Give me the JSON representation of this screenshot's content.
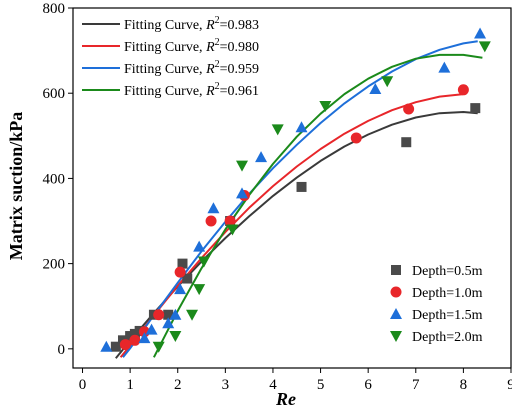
{
  "chart_data": {
    "type": "scatter",
    "title": "",
    "xlabel": "Re",
    "ylabel": "Matrix suction/kPa",
    "xlim": [
      -0.2,
      9
    ],
    "ylim": [
      -45,
      800
    ],
    "xticks": [
      0,
      1,
      2,
      3,
      4,
      5,
      6,
      7,
      8,
      9
    ],
    "yticks": [
      0,
      200,
      400,
      600,
      800
    ],
    "grid": false,
    "legend_curves_position": "top-left",
    "legend_points_position": "bottom-right",
    "curves": [
      {
        "name": "Fitting Curve, ",
        "r2_label": "R",
        "r2_sup": "2",
        "r2_value": "=0.983",
        "color": "#3a3a3a",
        "x": [
          0.7,
          1.0,
          1.5,
          2.0,
          2.5,
          3.0,
          3.5,
          4.0,
          4.5,
          5.0,
          5.5,
          6.0,
          6.5,
          7.0,
          7.5,
          8.0,
          8.3
        ],
        "y": [
          -22,
          19,
          84,
          146,
          205,
          260,
          311,
          359,
          402,
          441,
          475,
          503,
          526,
          543,
          553,
          556,
          553
        ]
      },
      {
        "name": "Fitting Curve, ",
        "r2_label": "R",
        "r2_sup": "2",
        "r2_value": "=0.980",
        "color": "#e8262a",
        "x": [
          0.8,
          1.0,
          1.5,
          2.0,
          2.5,
          3.0,
          3.5,
          4.0,
          4.5,
          5.0,
          5.5,
          6.0,
          6.5,
          7.0,
          7.5,
          8.0
        ],
        "y": [
          -20,
          7,
          79,
          148,
          213,
          274,
          331,
          382,
          428,
          469,
          505,
          535,
          560,
          579,
          592,
          598
        ]
      },
      {
        "name": "Fitting Curve, ",
        "r2_label": "R",
        "r2_sup": "2",
        "r2_value": "=0.959",
        "color": "#1e6fd9",
        "x": [
          0.85,
          1.0,
          1.5,
          2.0,
          2.5,
          3.0,
          3.5,
          4.0,
          4.5,
          5.0,
          5.5,
          6.0,
          6.5,
          7.0,
          7.5,
          8.0,
          8.3
        ],
        "y": [
          -20,
          1,
          79,
          155,
          229,
          298,
          364,
          424,
          479,
          530,
          576,
          616,
          651,
          680,
          702,
          717,
          722
        ]
      },
      {
        "name": "Fitting Curve, ",
        "r2_label": "R",
        "r2_sup": "2",
        "r2_value": "=0.961",
        "color": "#1b8a1b",
        "x": [
          1.5,
          2.0,
          2.5,
          3.0,
          3.5,
          4.0,
          4.5,
          5.0,
          5.5,
          6.0,
          6.5,
          7.0,
          7.5,
          8.0,
          8.4
        ],
        "y": [
          -20,
          89,
          189,
          280,
          361,
          434,
          498,
          552,
          598,
          634,
          662,
          681,
          690,
          690,
          683
        ]
      }
    ],
    "series": [
      {
        "name": "Depth=0.5m",
        "marker": "square",
        "color": "#4a4a4a",
        "x": [
          0.7,
          0.85,
          1.0,
          1.1,
          1.2,
          1.5,
          1.8,
          2.1,
          2.2,
          3.1,
          4.6,
          6.8,
          8.25
        ],
        "y": [
          5,
          20,
          30,
          35,
          42,
          80,
          80,
          200,
          165,
          300,
          380,
          485,
          565
        ]
      },
      {
        "name": "Depth=1.0m",
        "marker": "circle",
        "color": "#e8262a",
        "x": [
          0.9,
          1.1,
          1.3,
          1.6,
          2.05,
          2.7,
          3.1,
          3.4,
          5.75,
          6.85,
          8.0
        ],
        "y": [
          10,
          20,
          40,
          80,
          180,
          300,
          300,
          360,
          495,
          563,
          608
        ]
      },
      {
        "name": "Depth=1.5m",
        "marker": "triangle-up",
        "color": "#1e6fd9",
        "x": [
          0.5,
          1.3,
          1.45,
          1.8,
          1.95,
          2.05,
          2.45,
          2.75,
          3.35,
          3.75,
          4.6,
          6.15,
          7.6,
          8.35
        ],
        "y": [
          5,
          25,
          45,
          60,
          80,
          140,
          240,
          330,
          365,
          450,
          520,
          610,
          660,
          740
        ]
      },
      {
        "name": "Depth=2.0m",
        "marker": "triangle-down",
        "color": "#1b8a1b",
        "x": [
          1.6,
          1.95,
          2.3,
          2.45,
          2.55,
          3.15,
          3.35,
          4.1,
          5.1,
          6.4,
          8.45
        ],
        "y": [
          5,
          30,
          80,
          140,
          205,
          280,
          430,
          515,
          570,
          628,
          710
        ]
      }
    ]
  }
}
